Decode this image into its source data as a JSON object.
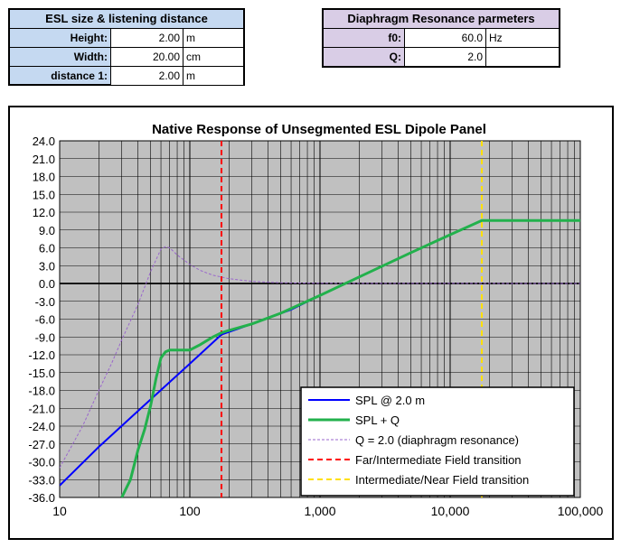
{
  "size_panel": {
    "title": "ESL size & listening distance",
    "rows": [
      {
        "label": "Height:",
        "value": "2.00",
        "unit": "m"
      },
      {
        "label": "Width:",
        "value": "20.00",
        "unit": "cm"
      },
      {
        "label": "distance 1:",
        "value": "2.00",
        "unit": "m"
      }
    ]
  },
  "resonance_panel": {
    "title": "Diaphragm Resonance parmeters",
    "rows": [
      {
        "label": "f0:",
        "value": "60.0",
        "unit": "Hz"
      },
      {
        "label": "Q:",
        "value": "2.0",
        "unit": ""
      }
    ]
  },
  "chart_data": {
    "type": "line",
    "title": "Native Response of Unsegmented ESL Dipole Panel",
    "xscale": "log",
    "xlim": [
      10,
      100000
    ],
    "ylim": [
      -36,
      24
    ],
    "yticks": [
      24,
      21,
      18,
      15,
      12,
      9,
      6,
      3,
      0,
      -3,
      -6,
      -9,
      -12,
      -15,
      -18,
      -21,
      -24,
      -27,
      -30,
      -33,
      -36
    ],
    "ytick_labels": [
      "24.0",
      "21.0",
      "18.0",
      "15.0",
      "12.0",
      "9.0",
      "6.0",
      "3.0",
      "0.0",
      "-3.0",
      "-6.0",
      "-9.0",
      "-12.0",
      "-15.0",
      "-18.0",
      "-21.0",
      "-24.0",
      "-27.0",
      "-30.0",
      "-33.0",
      "-36.0"
    ],
    "xticks": [
      10,
      100,
      1000,
      10000,
      100000
    ],
    "xtick_labels": [
      "10",
      "100",
      "1,000",
      "10,000",
      "100,000"
    ],
    "grid": true,
    "legend_position": "bottom-right",
    "series": [
      {
        "name": "SPL @ 2.0 m",
        "color": "#0000ff",
        "style": "solid",
        "x": [
          10,
          20,
          50,
          100,
          175,
          300,
          600,
          1000,
          2000,
          5000,
          10000,
          17500,
          50000,
          100000
        ],
        "y": [
          -34,
          -27.5,
          -19.5,
          -13.5,
          -8.6,
          -6.8,
          -4.4,
          -2.0,
          1.1,
          5.2,
          8.2,
          10.6,
          10.6,
          10.6
        ]
      },
      {
        "name": "SPL + Q",
        "color": "#22b14c",
        "style": "solid",
        "x": [
          30,
          35,
          40,
          45,
          50,
          55,
          60,
          65,
          70,
          80,
          100,
          120,
          150,
          175,
          200,
          300,
          500,
          1000,
          2000,
          5000,
          10000,
          17500,
          50000,
          100000
        ],
        "y": [
          -36,
          -33,
          -28,
          -24.5,
          -20.5,
          -16,
          -12.5,
          -11.5,
          -11.2,
          -11.2,
          -11.2,
          -10.3,
          -9.0,
          -8.3,
          -7.9,
          -6.8,
          -5.0,
          -2.0,
          1.1,
          5.2,
          8.2,
          10.6,
          10.6,
          10.6
        ]
      },
      {
        "name": "Q = 2.0 (diaphragm resonance)",
        "color": "#9966cc",
        "style": "dotted",
        "x": [
          10,
          15,
          20,
          25,
          30,
          40,
          50,
          60,
          65,
          70,
          80,
          100,
          120,
          150,
          200,
          300,
          500,
          1000,
          100000
        ],
        "y": [
          -31,
          -24,
          -18,
          -13.5,
          -9.5,
          -3.5,
          2,
          5.8,
          6.2,
          6.0,
          4.8,
          3.2,
          2.2,
          1.4,
          0.8,
          0.35,
          0.12,
          0.03,
          0
        ]
      },
      {
        "name": "Far/Intermediate  Field transition",
        "color": "#ff0000",
        "style": "dashed",
        "vline_x": 175
      },
      {
        "name": "Intermediate/Near  Field transition",
        "color": "#ffe000",
        "style": "dashed",
        "vline_x": 17500
      }
    ]
  }
}
